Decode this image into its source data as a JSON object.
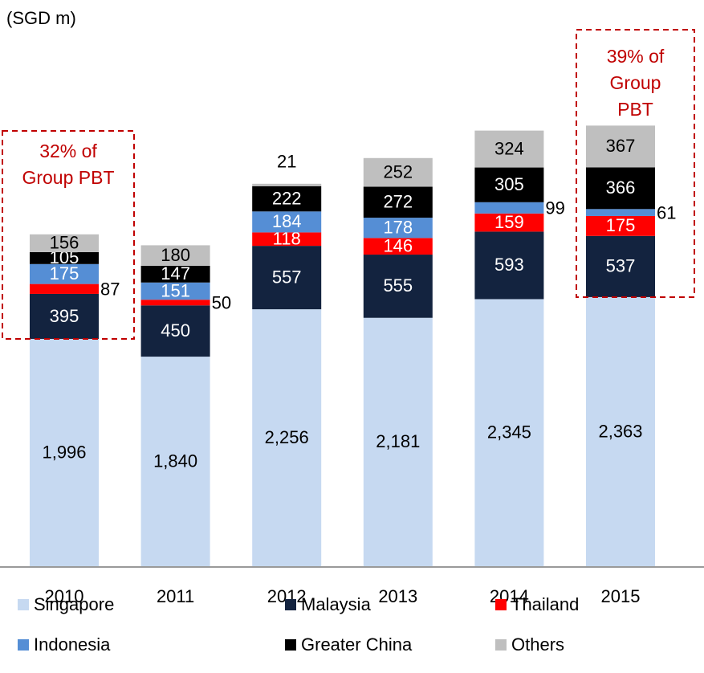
{
  "chart_data": {
    "type": "stacked_bar",
    "y_label": "(SGD m)",
    "categories": [
      "2010",
      "2011",
      "2012",
      "2013",
      "2014",
      "2015"
    ],
    "series": [
      {
        "name": "Singapore",
        "color": "#c6d9f1",
        "values": [
          1996,
          1840,
          2256,
          2181,
          2345,
          2363
        ],
        "value_labels": [
          "1,996",
          "1,840",
          "2,256",
          "2,181",
          "2,345",
          "2,363"
        ]
      },
      {
        "name": "Malaysia",
        "color": "#13233f",
        "values": [
          395,
          450,
          557,
          555,
          593,
          537
        ]
      },
      {
        "name": "Thailand",
        "color": "#ff0000",
        "values": [
          87,
          50,
          118,
          146,
          159,
          175
        ]
      },
      {
        "name": "Indonesia",
        "color": "#558ed5",
        "values": [
          175,
          151,
          184,
          178,
          99,
          61
        ]
      },
      {
        "name": "Greater China",
        "color": "#000000",
        "values": [
          105,
          147,
          222,
          272,
          305,
          366
        ]
      },
      {
        "name": "Others",
        "color": "#bfbfbf",
        "values": [
          156,
          180,
          21,
          252,
          324,
          367
        ]
      }
    ],
    "annotations": [
      {
        "lines": [
          "32% of",
          "Group PBT"
        ]
      },
      {
        "lines": [
          "39% of",
          "Group",
          "PBT"
        ]
      }
    ]
  }
}
